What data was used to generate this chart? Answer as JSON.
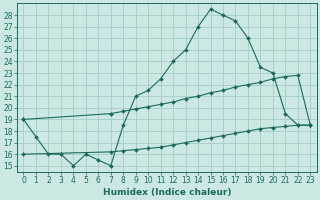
{
  "xlabel": "Humidex (Indice chaleur)",
  "xlim": [
    -0.5,
    23.5
  ],
  "ylim": [
    14.5,
    29.0
  ],
  "yticks": [
    15,
    16,
    17,
    18,
    19,
    20,
    21,
    22,
    23,
    24,
    25,
    26,
    27,
    28
  ],
  "xticks": [
    0,
    1,
    2,
    3,
    4,
    5,
    6,
    7,
    8,
    9,
    10,
    11,
    12,
    13,
    14,
    15,
    16,
    17,
    18,
    19,
    20,
    21,
    22,
    23
  ],
  "bg_color": "#cce8e4",
  "grid_color": "#aacfcb",
  "line_color": "#1a6b5a",
  "line1_x": [
    0,
    1,
    2,
    3,
    4,
    5,
    6,
    7,
    8,
    9,
    10,
    11,
    12,
    13,
    14,
    15,
    16,
    17,
    18,
    19,
    20,
    21,
    22,
    23
  ],
  "line1_y": [
    19.0,
    17.5,
    16.0,
    16.0,
    15.0,
    16.0,
    15.5,
    15.0,
    18.5,
    21.0,
    21.5,
    22.5,
    24.0,
    25.0,
    27.0,
    28.5,
    28.0,
    27.5,
    26.0,
    23.5,
    23.0,
    19.5,
    18.5,
    18.5
  ],
  "line2_x": [
    0,
    7,
    8,
    9,
    10,
    11,
    12,
    13,
    14,
    15,
    16,
    17,
    18,
    19,
    20,
    21,
    22,
    23
  ],
  "line2_y": [
    16.0,
    16.2,
    16.3,
    16.4,
    16.5,
    16.6,
    16.8,
    17.0,
    17.2,
    17.4,
    17.6,
    17.8,
    18.0,
    18.2,
    18.3,
    18.4,
    18.5,
    18.5
  ],
  "line3_x": [
    0,
    7,
    8,
    9,
    10,
    11,
    12,
    13,
    14,
    15,
    16,
    17,
    18,
    19,
    20,
    21,
    22,
    23
  ],
  "line3_y": [
    19.0,
    19.5,
    19.7,
    19.9,
    20.1,
    20.3,
    20.5,
    20.8,
    21.0,
    21.3,
    21.5,
    21.8,
    22.0,
    22.2,
    22.5,
    22.7,
    22.8,
    18.5
  ],
  "tick_fontsize": 5.5,
  "xlabel_fontsize": 6.5
}
